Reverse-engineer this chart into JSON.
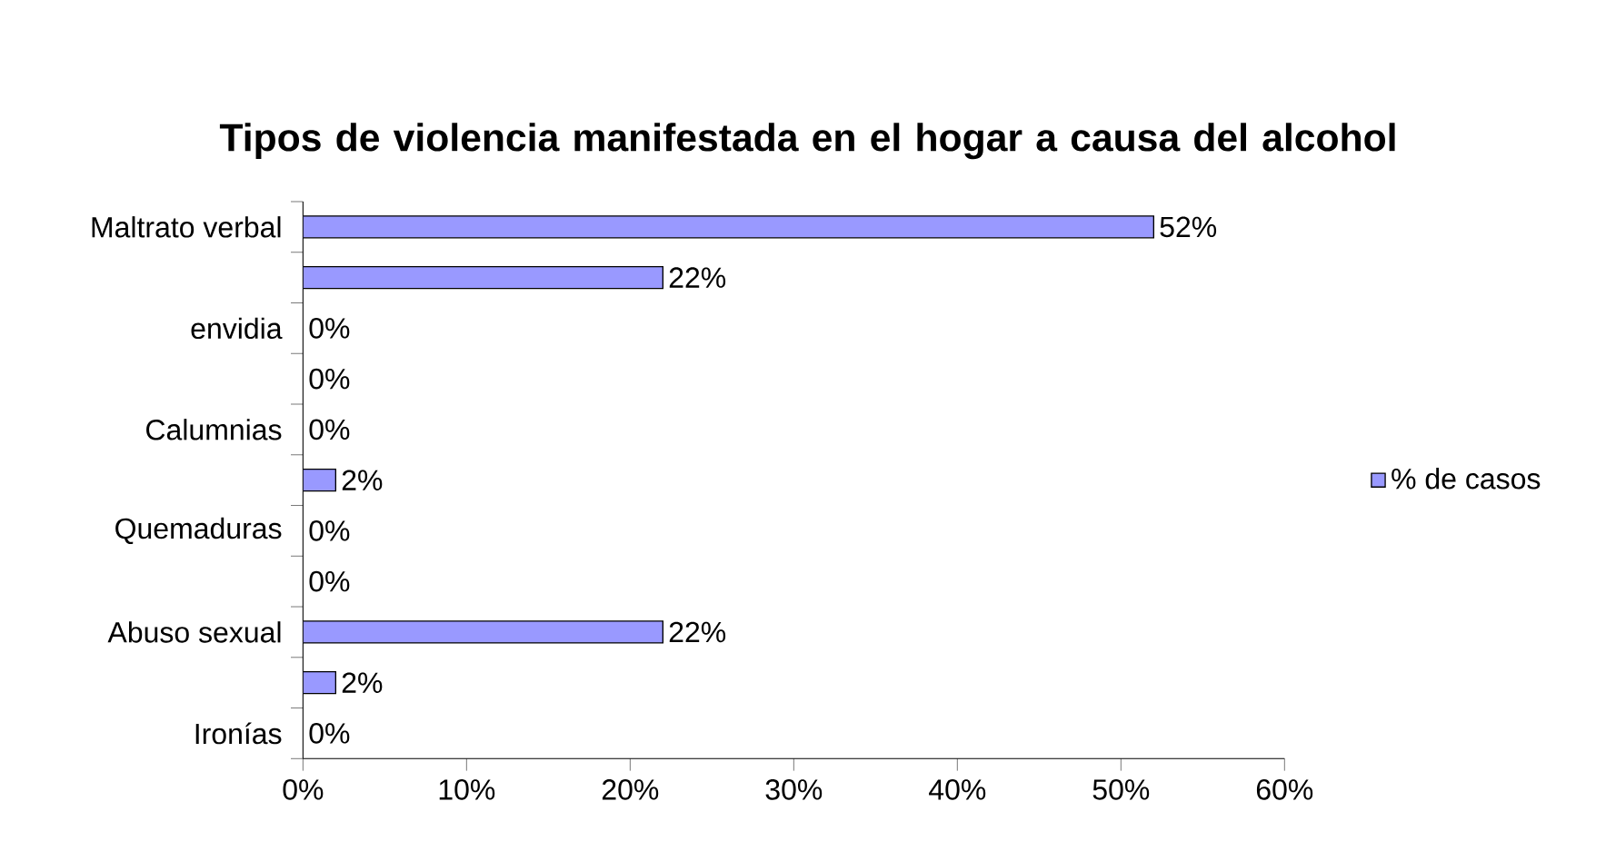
{
  "chart_data": {
    "type": "bar",
    "orientation": "horizontal",
    "title": "Tipos de violencia manifestada en el hogar a causa del alcohol",
    "categories": [
      "Maltrato verbal",
      null,
      "envidia",
      null,
      "Calumnias",
      null,
      "Quemaduras",
      null,
      "Abuso sexual",
      null,
      "Ironías"
    ],
    "series": [
      {
        "name": "% de casos",
        "color": "#9999ff",
        "values": [
          52,
          22,
          0,
          0,
          0,
          2,
          0,
          0,
          22,
          2,
          0
        ],
        "value_labels": [
          "52%",
          "22%",
          "0%",
          "0%",
          "0%",
          "2%",
          "0%",
          "0%",
          "22%",
          "2%",
          "0%"
        ]
      }
    ],
    "xlim": [
      0,
      60
    ],
    "xticks": [
      {
        "value": 0,
        "label": "0%"
      },
      {
        "value": 10,
        "label": "10%"
      },
      {
        "value": 20,
        "label": "20%"
      },
      {
        "value": 30,
        "label": "30%"
      },
      {
        "value": 40,
        "label": "40%"
      },
      {
        "value": 50,
        "label": "50%"
      },
      {
        "value": 60,
        "label": "60%"
      }
    ],
    "grid": false,
    "legend": "right"
  }
}
